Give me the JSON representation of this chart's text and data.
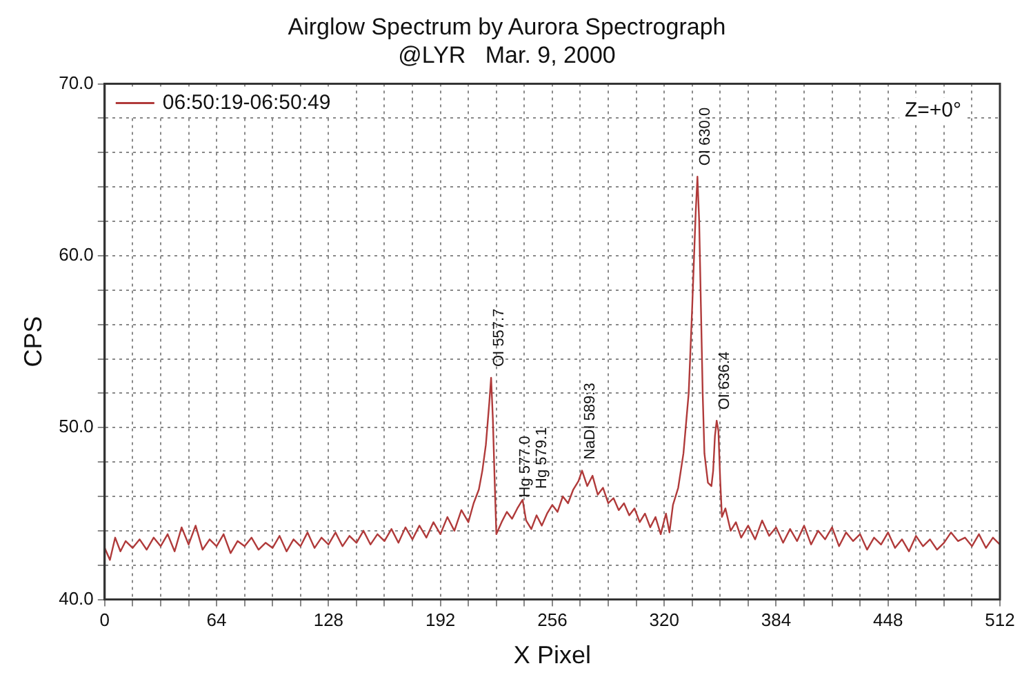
{
  "chart_data": {
    "type": "line",
    "title": "Airglow Spectrum by Aurora Spectrograph",
    "subtitle": "@LYR   Mar. 9, 2000",
    "xlabel": "X Pixel",
    "ylabel": "CPS",
    "xlim": [
      0,
      512
    ],
    "xticks": [
      0,
      {
        "value": 16,
        "label": null
      },
      {
        "value": 32,
        "label": null
      },
      {
        "value": 48,
        "label": null
      },
      64,
      {
        "value": 80,
        "label": null
      },
      {
        "value": 96,
        "label": null
      },
      {
        "value": 112,
        "label": null
      },
      128,
      {
        "value": 144,
        "label": null
      },
      {
        "value": 160,
        "label": null
      },
      {
        "value": 176,
        "label": null
      },
      192,
      {
        "value": 208,
        "label": null
      },
      {
        "value": 224,
        "label": null
      },
      {
        "value": 240,
        "label": null
      },
      256,
      {
        "value": 272,
        "label": null
      },
      {
        "value": 288,
        "label": null
      },
      {
        "value": 304,
        "label": null
      },
      320,
      {
        "value": 336,
        "label": null
      },
      {
        "value": 352,
        "label": null
      },
      {
        "value": 368,
        "label": null
      },
      384,
      {
        "value": 400,
        "label": null
      },
      {
        "value": 416,
        "label": null
      },
      {
        "value": 432,
        "label": null
      },
      448,
      {
        "value": 464,
        "label": null
      },
      {
        "value": 480,
        "label": null
      },
      {
        "value": 496,
        "label": null
      },
      512
    ],
    "ylim": [
      40,
      70
    ],
    "yticks": [
      {
        "value": 40,
        "label": "40.0"
      },
      {
        "value": 42,
        "label": null
      },
      {
        "value": 44,
        "label": null
      },
      {
        "value": 46,
        "label": null
      },
      {
        "value": 48,
        "label": null
      },
      {
        "value": 50,
        "label": "50.0"
      },
      {
        "value": 52,
        "label": null
      },
      {
        "value": 54,
        "label": null
      },
      {
        "value": 56,
        "label": null
      },
      {
        "value": 58,
        "label": null
      },
      {
        "value": 60,
        "label": "60.0"
      },
      {
        "value": 62,
        "label": null
      },
      {
        "value": 64,
        "label": null
      },
      {
        "value": 66,
        "label": null
      },
      {
        "value": 68,
        "label": null
      },
      {
        "value": 70,
        "label": "70.0"
      }
    ],
    "grid": true,
    "legend": "top left",
    "marker": "none",
    "line_style": "solid",
    "x": [
      0,
      3,
      6,
      9,
      12,
      16,
      20,
      24,
      28,
      32,
      36,
      40,
      44,
      48,
      52,
      56,
      60,
      64,
      68,
      72,
      76,
      80,
      84,
      88,
      92,
      96,
      100,
      104,
      108,
      112,
      116,
      120,
      124,
      128,
      132,
      136,
      140,
      144,
      148,
      152,
      156,
      160,
      164,
      168,
      172,
      176,
      180,
      184,
      188,
      192,
      196,
      200,
      204,
      208,
      211,
      214,
      216,
      218,
      220,
      221,
      222,
      223,
      224,
      227,
      230,
      233,
      236,
      239,
      241,
      244,
      247,
      250,
      253,
      256,
      259,
      262,
      265,
      268,
      271,
      273,
      276,
      279,
      282,
      285,
      288,
      291,
      294,
      297,
      300,
      303,
      306,
      309,
      312,
      315,
      318,
      321,
      323,
      325,
      328,
      331,
      334,
      336,
      338,
      339,
      340,
      341,
      342,
      343,
      345,
      347,
      348,
      349,
      350,
      351,
      352,
      353,
      355,
      358,
      361,
      364,
      368,
      372,
      376,
      380,
      384,
      388,
      392,
      396,
      400,
      404,
      408,
      412,
      416,
      420,
      424,
      428,
      432,
      436,
      440,
      444,
      448,
      452,
      456,
      460,
      464,
      468,
      472,
      476,
      480,
      484,
      488,
      492,
      496,
      500,
      504,
      508,
      512
    ],
    "series": [
      {
        "name": "06:50:19-06:50:49",
        "color": "#b03a3a",
        "values": [
          43.0,
          42.3,
          43.6,
          42.8,
          43.4,
          43.0,
          43.5,
          42.9,
          43.6,
          43.1,
          43.8,
          42.8,
          44.2,
          43.2,
          44.3,
          42.9,
          43.5,
          43.1,
          43.8,
          42.7,
          43.4,
          43.1,
          43.6,
          42.9,
          43.3,
          43.0,
          43.7,
          42.8,
          43.5,
          43.1,
          43.9,
          43.0,
          43.6,
          43.2,
          43.9,
          43.1,
          43.7,
          43.3,
          44.0,
          43.2,
          43.8,
          43.4,
          44.1,
          43.3,
          44.2,
          43.5,
          44.3,
          43.6,
          44.5,
          43.8,
          44.8,
          44.0,
          45.2,
          44.5,
          45.6,
          46.4,
          47.5,
          49.0,
          51.5,
          52.9,
          50.5,
          47.0,
          43.8,
          44.5,
          45.1,
          44.7,
          45.3,
          45.8,
          44.6,
          44.1,
          44.9,
          44.3,
          45.0,
          45.5,
          45.1,
          46.0,
          45.6,
          46.4,
          46.9,
          47.5,
          46.6,
          47.2,
          46.1,
          46.5,
          45.6,
          45.9,
          45.2,
          45.6,
          44.9,
          45.3,
          44.5,
          45.0,
          44.2,
          44.8,
          43.8,
          45.0,
          43.9,
          45.5,
          46.5,
          48.5,
          52.0,
          57.0,
          62.5,
          64.6,
          62.0,
          57.0,
          52.0,
          48.5,
          46.8,
          46.6,
          47.5,
          49.5,
          50.4,
          49.8,
          47.0,
          44.8,
          45.3,
          44.0,
          44.5,
          43.6,
          44.3,
          43.5,
          44.6,
          43.7,
          44.2,
          43.3,
          44.1,
          43.4,
          44.3,
          43.2,
          44.0,
          43.5,
          44.2,
          43.1,
          43.9,
          43.4,
          43.8,
          42.9,
          43.6,
          43.2,
          43.9,
          43.0,
          43.5,
          42.8,
          43.7,
          43.1,
          43.5,
          42.9,
          43.3,
          43.9,
          43.4,
          43.6,
          43.1,
          43.8,
          43.0,
          43.6,
          43.2
        ]
      }
    ],
    "annotations": [
      {
        "text": "OI 557.7",
        "x": 221,
        "y": 52.9
      },
      {
        "text": "Hg 577.0",
        "x": 236,
        "y": 45.3
      },
      {
        "text": "Hg 579.1",
        "x": 239,
        "y": 45.8
      },
      {
        "text": "NaDI 589:3",
        "x": 273,
        "y": 47.5
      },
      {
        "text": "OI 630.0",
        "x": 339,
        "y": 64.6
      },
      {
        "text": "OI 636.4",
        "x": 350,
        "y": 50.4
      },
      "Z=+0°"
    ]
  }
}
